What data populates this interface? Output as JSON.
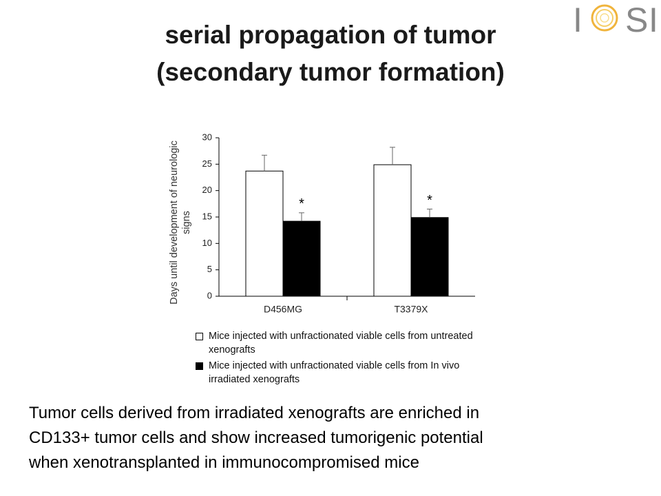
{
  "slide": {
    "title": [
      "serial propagation of tumor",
      "(secondary tumor formation)"
    ],
    "logo": [
      "I",
      "S",
      "I"
    ],
    "body": [
      "Tumor cells derived from irradiated xenografts are enriched in",
      "CD133+ tumor cells and show increased tumorigenic potential",
      "when xenotransplanted in immunocompromised mice"
    ]
  },
  "chart_data": {
    "type": "bar",
    "ylabel": "Days until development of neurologic signs",
    "categories": [
      "D456MG",
      "T3379X"
    ],
    "series": [
      {
        "name": "Mice injected with unfractionated viable cells from untreated xenografts",
        "color": "#ffffff",
        "values": [
          23.7,
          24.9
        ],
        "errors": [
          3,
          3.3
        ]
      },
      {
        "name": "Mice injected with unfractionated viable cells from In vivo irradiated xenografts",
        "color": "#000000",
        "values": [
          14.2,
          14.9
        ],
        "errors": [
          1.6,
          1.6
        ],
        "annotations": [
          "*",
          "*"
        ]
      }
    ],
    "ylim": [
      0,
      30
    ],
    "yticks": [
      0,
      5,
      10,
      15,
      20,
      25,
      30
    ]
  }
}
